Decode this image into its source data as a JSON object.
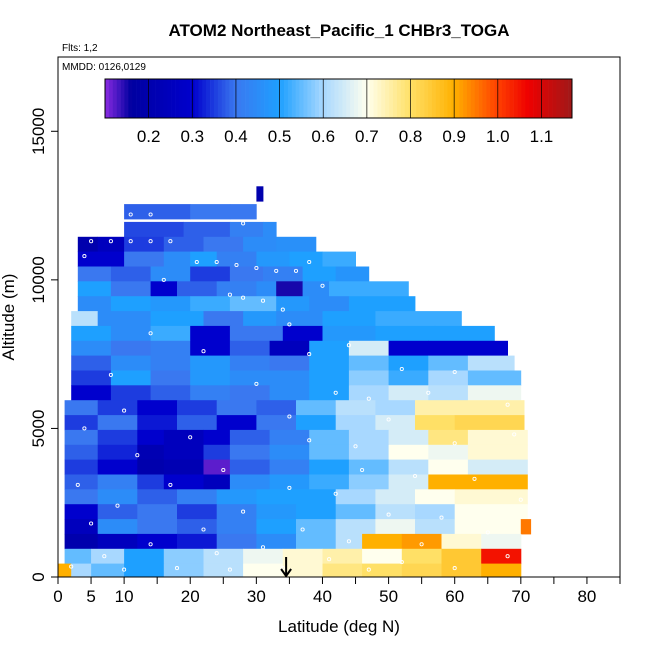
{
  "chart_data": {
    "type": "heatmap",
    "title": "ATOM2 Northeast_Pacific_1 CHBr3_TOGA",
    "annotations": {
      "flights": "Flts: 1,2",
      "dates": "MMDD: 0126,0129"
    },
    "xlabel": "Latitude (deg N)",
    "ylabel": "Altitude (m)",
    "xlim": [
      0,
      85
    ],
    "ylim": [
      0,
      17500
    ],
    "x_ticks": [
      0,
      5,
      10,
      20,
      30,
      40,
      50,
      60,
      70,
      80
    ],
    "y_ticks": [
      0,
      5000,
      10000,
      15000
    ],
    "colorbar": {
      "min": 0.1,
      "max": 1.17,
      "ticks": [
        0.2,
        0.3,
        0.4,
        0.5,
        0.6,
        0.7,
        0.8,
        0.9,
        1.0,
        1.1
      ],
      "tick_labels": [
        "0.2",
        "0.3",
        "0.4",
        "0.5",
        "0.6",
        "0.7",
        "0.8",
        "0.9",
        "1.0",
        "1.1"
      ],
      "stops": [
        {
          "v": 0.1,
          "c": "#8a2be2"
        },
        {
          "v": 0.16,
          "c": "#0000a0"
        },
        {
          "v": 0.3,
          "c": "#0000cd"
        },
        {
          "v": 0.4,
          "c": "#3a78f0"
        },
        {
          "v": 0.5,
          "c": "#1ea0ff"
        },
        {
          "v": 0.6,
          "c": "#a8d8ff"
        },
        {
          "v": 0.7,
          "c": "#ffffee"
        },
        {
          "v": 0.8,
          "c": "#ffe066"
        },
        {
          "v": 0.9,
          "c": "#ffb000"
        },
        {
          "v": 1.0,
          "c": "#ff4000"
        },
        {
          "v": 1.07,
          "c": "#ee0000"
        },
        {
          "v": 1.17,
          "c": "#a01818"
        }
      ]
    },
    "marker": {
      "latitude": 34.5
    },
    "rows": [
      {
        "alt": 12900,
        "lat": [
          30,
          31
        ],
        "v": [
          0.2
        ]
      },
      {
        "alt": 12300,
        "lat": [
          10,
          20,
          26,
          30
        ],
        "v": [
          0.38,
          0.4,
          0.4
        ]
      },
      {
        "alt": 11700,
        "lat": [
          10,
          19,
          26,
          31,
          33
        ],
        "v": [
          0.36,
          0.38,
          0.42,
          0.45
        ]
      },
      {
        "alt": 11200,
        "lat": [
          3,
          6,
          10,
          16,
          22,
          28,
          33,
          39
        ],
        "v": [
          0.2,
          0.25,
          0.35,
          0.38,
          0.4,
          0.45,
          0.46
        ]
      },
      {
        "alt": 10700,
        "lat": [
          3,
          10,
          16,
          20,
          24,
          30,
          35,
          40,
          45
        ],
        "v": [
          0.3,
          0.4,
          0.45,
          0.5,
          0.42,
          0.48,
          0.5,
          0.52
        ]
      },
      {
        "alt": 10200,
        "lat": [
          3,
          8,
          14,
          20,
          26,
          31,
          37,
          42,
          47
        ],
        "v": [
          0.4,
          0.38,
          0.45,
          0.35,
          0.4,
          0.42,
          0.5,
          0.47
        ]
      },
      {
        "alt": 9700,
        "lat": [
          3,
          8,
          14,
          18,
          24,
          30,
          33,
          37,
          41,
          53
        ],
        "v": [
          0.5,
          0.4,
          0.3,
          0.38,
          0.42,
          0.45,
          0.15,
          0.45,
          0.52
        ]
      },
      {
        "alt": 9200,
        "lat": [
          3,
          8,
          14,
          20,
          26,
          33,
          38,
          44,
          54
        ],
        "v": [
          0.45,
          0.5,
          0.48,
          0.52,
          0.55,
          0.48,
          0.45,
          0.5
        ]
      },
      {
        "alt": 8700,
        "lat": [
          2,
          6,
          14,
          22,
          28,
          33,
          40,
          48,
          61
        ],
        "v": [
          0.62,
          0.45,
          0.5,
          0.4,
          0.48,
          0.45,
          0.5,
          0.52
        ]
      },
      {
        "alt": 8200,
        "lat": [
          2,
          8,
          14,
          20,
          26,
          34,
          40,
          48,
          57,
          66
        ],
        "v": [
          0.5,
          0.45,
          0.52,
          0.3,
          0.4,
          0.3,
          0.48,
          0.5,
          0.5
        ]
      },
      {
        "alt": 7700,
        "lat": [
          2,
          8,
          14,
          20,
          26,
          32,
          38,
          44,
          50,
          56,
          68
        ],
        "v": [
          0.45,
          0.4,
          0.42,
          0.3,
          0.38,
          0.25,
          0.5,
          0.65,
          0.3,
          0.3
        ]
      },
      {
        "alt": 7200,
        "lat": [
          2,
          8,
          14,
          20,
          26,
          32,
          38,
          44,
          50,
          56,
          62,
          69
        ],
        "v": [
          0.38,
          0.45,
          0.42,
          0.48,
          0.42,
          0.4,
          0.5,
          0.55,
          0.5,
          0.55,
          0.62
        ]
      },
      {
        "alt": 6700,
        "lat": [
          2,
          8,
          14,
          20,
          26,
          32,
          38,
          44,
          50,
          56,
          62,
          70
        ],
        "v": [
          0.35,
          0.5,
          0.4,
          0.48,
          0.45,
          0.45,
          0.5,
          0.58,
          0.52,
          0.6,
          0.55
        ]
      },
      {
        "alt": 6200,
        "lat": [
          2,
          8,
          14,
          20,
          26,
          32,
          38,
          44,
          50,
          56,
          62,
          70
        ],
        "v": [
          0.3,
          0.35,
          0.38,
          0.42,
          0.4,
          0.45,
          0.5,
          0.6,
          0.65,
          0.62,
          0.68
        ]
      },
      {
        "alt": 5700,
        "lat": [
          1,
          6,
          12,
          18,
          24,
          30,
          36,
          42,
          48,
          54,
          60,
          70.5
        ],
        "v": [
          0.4,
          0.35,
          0.3,
          0.35,
          0.4,
          0.38,
          0.55,
          0.62,
          0.6,
          0.75,
          0.75
        ]
      },
      {
        "alt": 5200,
        "lat": [
          1,
          6,
          12,
          18,
          24,
          30,
          36,
          42,
          48,
          54,
          60,
          70.5
        ],
        "v": [
          0.35,
          0.4,
          0.32,
          0.38,
          0.3,
          0.4,
          0.5,
          0.6,
          0.65,
          0.8,
          0.82
        ]
      },
      {
        "alt": 4700,
        "lat": [
          1,
          6,
          12,
          16,
          22,
          26,
          32,
          38,
          44,
          50,
          56,
          62,
          71
        ],
        "v": [
          0.4,
          0.35,
          0.3,
          0.25,
          0.3,
          0.38,
          0.42,
          0.55,
          0.6,
          0.65,
          0.78,
          0.72
        ]
      },
      {
        "alt": 4200,
        "lat": [
          1,
          6,
          12,
          16,
          22,
          26,
          32,
          38,
          44,
          50,
          56,
          62,
          71
        ],
        "v": [
          0.38,
          0.33,
          0.22,
          0.25,
          0.35,
          0.4,
          0.45,
          0.55,
          0.6,
          0.7,
          0.68,
          0.72
        ]
      },
      {
        "alt": 3700,
        "lat": [
          1,
          6,
          12,
          16,
          22,
          26,
          32,
          38,
          44,
          50,
          56,
          62,
          71
        ],
        "v": [
          0.35,
          0.3,
          0.2,
          0.22,
          0.12,
          0.38,
          0.42,
          0.5,
          0.55,
          0.62,
          0.7,
          0.65
        ]
      },
      {
        "alt": 3200,
        "lat": [
          1,
          6,
          12,
          16,
          22,
          26,
          32,
          38,
          44,
          50,
          56,
          62,
          71
        ],
        "v": [
          0.38,
          0.42,
          0.35,
          0.3,
          0.25,
          0.45,
          0.48,
          0.52,
          0.58,
          0.65,
          0.9,
          0.9
        ]
      },
      {
        "alt": 2700,
        "lat": [
          1,
          6,
          12,
          18,
          24,
          30,
          36,
          42,
          48,
          54,
          60,
          71
        ],
        "v": [
          0.4,
          0.45,
          0.38,
          0.42,
          0.48,
          0.5,
          0.5,
          0.6,
          0.65,
          0.7,
          0.72
        ]
      },
      {
        "alt": 2200,
        "lat": [
          1,
          6,
          12,
          18,
          24,
          30,
          36,
          42,
          48,
          54,
          60,
          71
        ],
        "v": [
          0.3,
          0.38,
          0.4,
          0.35,
          0.42,
          0.48,
          0.5,
          0.55,
          0.62,
          0.6,
          0.7
        ]
      },
      {
        "alt": 1700,
        "lat": [
          1,
          6,
          12,
          18,
          24,
          30,
          36,
          42,
          48,
          54,
          60,
          70,
          71.5
        ],
        "v": [
          0.25,
          0.45,
          0.4,
          0.38,
          0.42,
          0.5,
          0.55,
          0.62,
          0.68,
          0.62,
          0.7,
          0.95
        ]
      },
      {
        "alt": 1200,
        "lat": [
          1,
          6,
          12,
          18,
          24,
          30,
          36,
          42,
          46,
          52,
          58,
          64,
          70
        ],
        "v": [
          0.2,
          0.25,
          0.3,
          0.32,
          0.4,
          0.45,
          0.55,
          0.62,
          0.9,
          0.92,
          0.72,
          0.68
        ]
      },
      {
        "alt": 700,
        "lat": [
          1,
          5,
          10,
          16,
          22,
          28,
          34,
          40,
          46,
          52,
          58,
          64,
          70
        ],
        "v": [
          0.55,
          0.6,
          0.5,
          0.58,
          0.62,
          0.68,
          0.72,
          0.75,
          0.7,
          0.8,
          0.85,
          1.05
        ]
      },
      {
        "alt": 200,
        "lat": [
          0,
          2,
          5,
          10,
          16,
          22,
          28,
          34,
          40,
          46,
          52,
          58,
          64,
          70
        ],
        "v": [
          0.9,
          0.6,
          0.55,
          0.5,
          0.58,
          0.62,
          0.7,
          0.72,
          0.78,
          0.8,
          0.82,
          0.85,
          0.9
        ]
      }
    ],
    "samples": [
      {
        "lat": 11,
        "alt": 12200
      },
      {
        "lat": 14,
        "alt": 12200
      },
      {
        "lat": 28,
        "alt": 11900
      },
      {
        "lat": 5,
        "alt": 11300
      },
      {
        "lat": 8,
        "alt": 11300
      },
      {
        "lat": 11,
        "alt": 11300
      },
      {
        "lat": 14,
        "alt": 11300
      },
      {
        "lat": 17,
        "alt": 11300
      },
      {
        "lat": 21,
        "alt": 10600
      },
      {
        "lat": 24,
        "alt": 10600
      },
      {
        "lat": 27,
        "alt": 10500
      },
      {
        "lat": 30,
        "alt": 10400
      },
      {
        "lat": 33,
        "alt": 10300
      },
      {
        "lat": 36,
        "alt": 10300
      },
      {
        "lat": 38,
        "alt": 10600
      },
      {
        "lat": 26,
        "alt": 9500
      },
      {
        "lat": 28,
        "alt": 9400
      },
      {
        "lat": 31,
        "alt": 9300
      },
      {
        "lat": 4,
        "alt": 10800
      },
      {
        "lat": 16,
        "alt": 10000
      },
      {
        "lat": 40,
        "alt": 9800
      },
      {
        "lat": 34,
        "alt": 9000
      },
      {
        "lat": 35,
        "alt": 8500
      },
      {
        "lat": 14,
        "alt": 8200
      },
      {
        "lat": 22,
        "alt": 7600
      },
      {
        "lat": 38,
        "alt": 7500
      },
      {
        "lat": 44,
        "alt": 7800
      },
      {
        "lat": 52,
        "alt": 7000
      },
      {
        "lat": 60,
        "alt": 6900
      },
      {
        "lat": 8,
        "alt": 6800
      },
      {
        "lat": 30,
        "alt": 6500
      },
      {
        "lat": 42,
        "alt": 6200
      },
      {
        "lat": 47,
        "alt": 6000
      },
      {
        "lat": 56,
        "alt": 6200
      },
      {
        "lat": 68,
        "alt": 5800
      },
      {
        "lat": 10,
        "alt": 5600
      },
      {
        "lat": 35,
        "alt": 5400
      },
      {
        "lat": 50,
        "alt": 5300
      },
      {
        "lat": 4,
        "alt": 5000
      },
      {
        "lat": 20,
        "alt": 4700
      },
      {
        "lat": 38,
        "alt": 4600
      },
      {
        "lat": 45,
        "alt": 4400
      },
      {
        "lat": 60,
        "alt": 4500
      },
      {
        "lat": 69,
        "alt": 4800
      },
      {
        "lat": 12,
        "alt": 4100
      },
      {
        "lat": 25,
        "alt": 3600
      },
      {
        "lat": 46,
        "alt": 3600
      },
      {
        "lat": 54,
        "alt": 3400
      },
      {
        "lat": 63,
        "alt": 3300
      },
      {
        "lat": 3,
        "alt": 3100
      },
      {
        "lat": 17,
        "alt": 3100
      },
      {
        "lat": 35,
        "alt": 3000
      },
      {
        "lat": 42,
        "alt": 2800
      },
      {
        "lat": 70,
        "alt": 2600
      },
      {
        "lat": 9,
        "alt": 2400
      },
      {
        "lat": 28,
        "alt": 2200
      },
      {
        "lat": 50,
        "alt": 2100
      },
      {
        "lat": 58,
        "alt": 2000
      },
      {
        "lat": 5,
        "alt": 1800
      },
      {
        "lat": 22,
        "alt": 1600
      },
      {
        "lat": 37,
        "alt": 1600
      },
      {
        "lat": 65,
        "alt": 1500
      },
      {
        "lat": 14,
        "alt": 1100
      },
      {
        "lat": 31,
        "alt": 1000
      },
      {
        "lat": 44,
        "alt": 1200
      },
      {
        "lat": 55,
        "alt": 1100
      },
      {
        "lat": 7,
        "alt": 700
      },
      {
        "lat": 24,
        "alt": 800
      },
      {
        "lat": 41,
        "alt": 600
      },
      {
        "lat": 52,
        "alt": 500
      },
      {
        "lat": 68,
        "alt": 700
      },
      {
        "lat": 2,
        "alt": 350
      },
      {
        "lat": 10,
        "alt": 250
      },
      {
        "lat": 18,
        "alt": 300
      },
      {
        "lat": 26,
        "alt": 250
      },
      {
        "lat": 34,
        "alt": 300
      },
      {
        "lat": 47,
        "alt": 250
      },
      {
        "lat": 60,
        "alt": 300
      }
    ]
  }
}
